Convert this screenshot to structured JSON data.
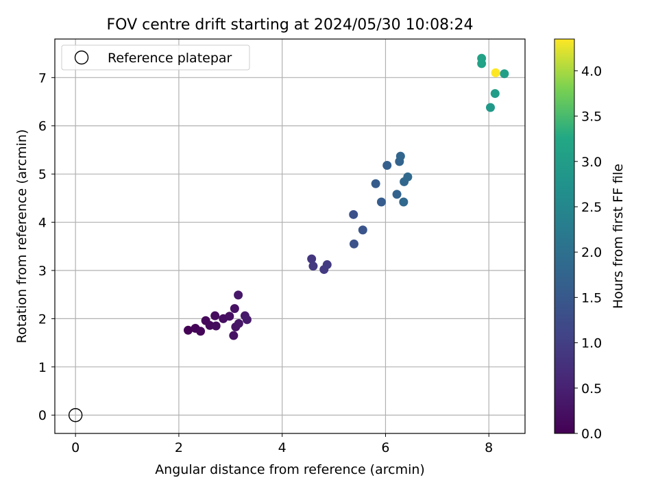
{
  "chart_data": {
    "type": "scatter",
    "title": "FOV centre drift starting at 2024/05/30 10:08:24",
    "xlabel": "Angular distance from reference (arcmin)",
    "ylabel": "Rotation from reference (arcmin)",
    "xlim": [
      -0.4,
      8.7
    ],
    "ylim": [
      -0.38,
      7.8
    ],
    "xticks": [
      0,
      2,
      4,
      6,
      8
    ],
    "xtick_labels": [
      "0",
      "2",
      "4",
      "6",
      "8"
    ],
    "yticks": [
      0,
      1,
      2,
      3,
      4,
      5,
      6,
      7
    ],
    "ytick_labels": [
      "0",
      "1",
      "2",
      "3",
      "4",
      "5",
      "6",
      "7"
    ],
    "grid": true,
    "legend": {
      "position": "top-left",
      "entries": [
        "Reference platepar"
      ]
    },
    "reference_point": {
      "label": "Reference platepar",
      "x": 0,
      "y": 0,
      "marker": "open-circle",
      "edgecolor": "#000000"
    },
    "colorbar": {
      "label": "Hours from first FF file",
      "min": 0.0,
      "max": 4.35,
      "ticks": [
        0.0,
        0.5,
        1.0,
        1.5,
        2.0,
        2.5,
        3.0,
        3.5,
        4.0
      ],
      "tick_labels": [
        "0.0",
        "0.5",
        "1.0",
        "1.5",
        "2.0",
        "2.5",
        "3.0",
        "3.5",
        "4.0"
      ],
      "colormap": "viridis"
    },
    "series": [
      {
        "points": [
          {
            "x": 2.18,
            "y": 1.76,
            "hours": 0.02
          },
          {
            "x": 2.32,
            "y": 1.8,
            "hours": 0.05
          },
          {
            "x": 2.42,
            "y": 1.74,
            "hours": 0.08
          },
          {
            "x": 2.52,
            "y": 1.96,
            "hours": 0.1
          },
          {
            "x": 2.6,
            "y": 1.86,
            "hours": 0.12
          },
          {
            "x": 2.7,
            "y": 2.06,
            "hours": 0.15
          },
          {
            "x": 2.72,
            "y": 1.85,
            "hours": 0.17
          },
          {
            "x": 2.86,
            "y": 2.0,
            "hours": 0.2
          },
          {
            "x": 2.98,
            "y": 2.05,
            "hours": 0.22
          },
          {
            "x": 3.08,
            "y": 2.21,
            "hours": 0.25
          },
          {
            "x": 3.06,
            "y": 1.65,
            "hours": 0.27
          },
          {
            "x": 3.1,
            "y": 1.83,
            "hours": 0.3
          },
          {
            "x": 3.16,
            "y": 1.9,
            "hours": 0.32
          },
          {
            "x": 3.15,
            "y": 2.49,
            "hours": 0.35
          },
          {
            "x": 3.28,
            "y": 2.06,
            "hours": 0.37
          },
          {
            "x": 3.32,
            "y": 1.98,
            "hours": 0.4
          },
          {
            "x": 4.57,
            "y": 3.24,
            "hours": 0.85
          },
          {
            "x": 4.6,
            "y": 3.09,
            "hours": 0.88
          },
          {
            "x": 4.81,
            "y": 3.02,
            "hours": 0.92
          },
          {
            "x": 4.87,
            "y": 3.12,
            "hours": 0.95
          },
          {
            "x": 5.38,
            "y": 4.16,
            "hours": 1.35
          },
          {
            "x": 5.39,
            "y": 3.55,
            "hours": 1.38
          },
          {
            "x": 5.56,
            "y": 3.84,
            "hours": 1.42
          },
          {
            "x": 5.81,
            "y": 4.8,
            "hours": 1.58
          },
          {
            "x": 5.92,
            "y": 4.42,
            "hours": 1.6
          },
          {
            "x": 6.03,
            "y": 5.18,
            "hours": 1.65
          },
          {
            "x": 6.22,
            "y": 4.58,
            "hours": 1.72
          },
          {
            "x": 6.27,
            "y": 5.26,
            "hours": 1.75
          },
          {
            "x": 6.29,
            "y": 5.37,
            "hours": 1.78
          },
          {
            "x": 6.36,
            "y": 4.84,
            "hours": 1.8
          },
          {
            "x": 6.35,
            "y": 4.42,
            "hours": 1.82
          },
          {
            "x": 6.43,
            "y": 4.94,
            "hours": 1.85
          },
          {
            "x": 7.86,
            "y": 7.4,
            "hours": 3.1
          },
          {
            "x": 7.86,
            "y": 7.29,
            "hours": 3.12
          },
          {
            "x": 8.03,
            "y": 6.38,
            "hours": 2.9
          },
          {
            "x": 8.12,
            "y": 6.67,
            "hours": 3.0
          },
          {
            "x": 8.3,
            "y": 7.08,
            "hours": 3.05
          },
          {
            "x": 8.13,
            "y": 7.1,
            "hours": 4.35
          }
        ]
      }
    ]
  }
}
